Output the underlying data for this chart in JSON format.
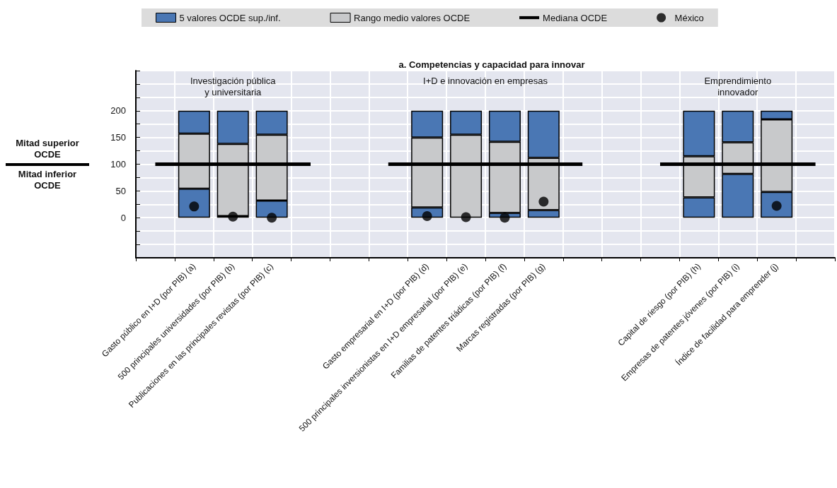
{
  "chart_data": {
    "type": "bar",
    "title": "a. Competencias y capacidad para innovar",
    "categories": [
      null,
      "Gasto público en I+D (por PIB) (a)",
      "500 principales universidades (por PIB) (b)",
      "Publicaciones en las principales revistas (por PIB) (c)",
      null,
      null,
      null,
      "Gasto empresarial en I+D (por PIB) (d)",
      "500 principales inversionistas en I+D empresarial (por PIB) (e)",
      "Familias de patentes triádicas (por PIB) (f)",
      "Marcas registradas (por PIB) (g)",
      null,
      null,
      null,
      "Capital de riesgo (por PIB) (h)",
      "Empresas de patentes jóvenes (por PIB) (i)",
      "Índice de facilidad para emprender (j)",
      null
    ],
    "stacked": true,
    "series": [
      {
        "name": "5 valores OCDE sup./inf.",
        "color": "#4a77b4",
        "values": [
          null,
          54,
          3,
          32,
          null,
          null,
          null,
          19,
          null,
          9,
          14,
          null,
          null,
          null,
          38,
          82,
          48,
          null
        ]
      },
      {
        "name": "Rango medio valores OCDE",
        "color": "#c8c9cb",
        "values": [
          null,
          103,
          135,
          123,
          null,
          null,
          null,
          131,
          155,
          133,
          98,
          null,
          null,
          null,
          77,
          59,
          136,
          null
        ]
      },
      {
        "color": "#4a77b4",
        "values": [
          null,
          43,
          62,
          45,
          null,
          null,
          null,
          50,
          45,
          58,
          88,
          null,
          null,
          null,
          85,
          59,
          16,
          null
        ]
      },
      {
        "type": "line",
        "name": "Mediana OCDE",
        "color": "#000000",
        "values": [
          100,
          100,
          100,
          100,
          100,
          null,
          100,
          100,
          100,
          100,
          100,
          100,
          null,
          100,
          100,
          100,
          100,
          100
        ]
      },
      {
        "type": "scatter",
        "name": "México",
        "color": "#000000",
        "marker": "circle",
        "values": [
          null,
          21,
          2,
          0,
          null,
          null,
          null,
          3,
          1,
          0,
          30,
          null,
          null,
          null,
          null,
          null,
          22,
          null
        ]
      }
    ],
    "ylim": [
      -75,
      275
    ],
    "yticks": [
      {
        "value": -75,
        "label": null
      },
      {
        "value": -50,
        "label": null
      },
      {
        "value": -25,
        "label": null
      },
      0,
      {
        "value": 25,
        "label": null
      },
      50,
      {
        "value": 75,
        "label": null
      },
      100,
      {
        "value": 125,
        "label": null
      },
      150,
      {
        "value": 175,
        "label": null
      },
      200,
      {
        "value": 225,
        "label": null
      },
      {
        "value": 250,
        "label": null
      },
      {
        "value": 275,
        "label": null
      }
    ],
    "grid": true,
    "legend": "top",
    "annotations": [
      "Investigación pública\ny universitaria",
      "I+D e innovación en empresas",
      "Emprendimiento\ninnovador",
      "Mitad superior\nOCDE",
      "Mitad inferior\nOCDE"
    ]
  }
}
